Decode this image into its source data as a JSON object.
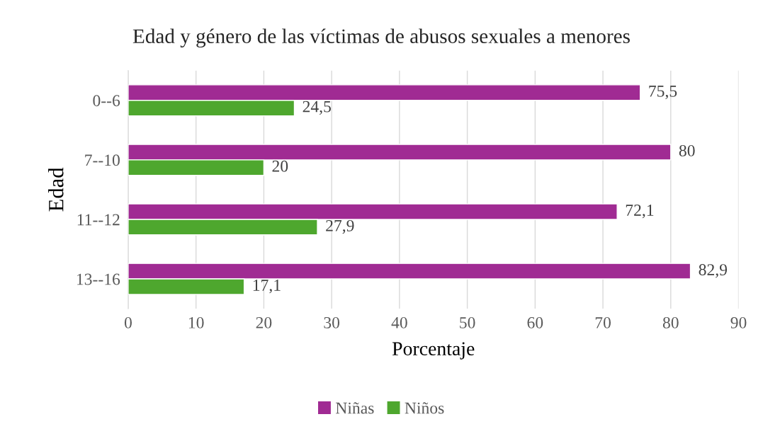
{
  "chart_data": {
    "type": "bar",
    "orientation": "horizontal",
    "title": "Edad y género de las víctimas de abusos sexuales a menores",
    "xlabel": "Porcentaje",
    "ylabel": "Edad",
    "categories": [
      "0--6",
      "7--10",
      "11--12",
      "13--16"
    ],
    "series": [
      {
        "name": "Niñas",
        "color": "#a02b93",
        "values": [
          75.5,
          80,
          72.1,
          82.9
        ],
        "value_labels": [
          "75,5",
          "80",
          "72,1",
          "82,9"
        ]
      },
      {
        "name": "Niños",
        "color": "#4ea72e",
        "values": [
          24.5,
          20,
          27.9,
          17.1
        ],
        "value_labels": [
          "24,5",
          "20",
          "27,9",
          "17,1"
        ]
      }
    ],
    "xlim": [
      0,
      90
    ],
    "xticks": [
      0,
      10,
      20,
      30,
      40,
      50,
      60,
      70,
      80,
      90
    ],
    "grid": "x",
    "legend": "bottom"
  }
}
